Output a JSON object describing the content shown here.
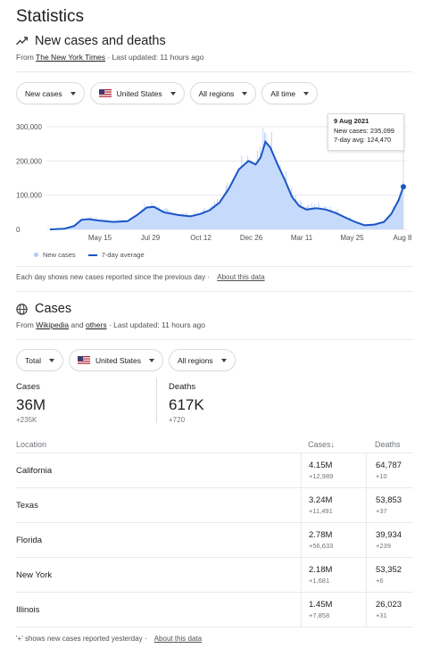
{
  "page": {
    "title": "Statistics"
  },
  "section1": {
    "heading": "New cases and deaths",
    "source_prefix": "From ",
    "source_name": "The New York Times",
    "updated": " · Last updated: 11 hours ago",
    "filters": [
      {
        "label": "New cases"
      },
      {
        "label": "United States",
        "flag": true
      },
      {
        "label": "All regions"
      },
      {
        "label": "All time"
      }
    ],
    "tooltip": {
      "date": "9 Aug 2021",
      "line1": "New cases: 235,099",
      "line2": "7-day avg: 124,470"
    },
    "legend": {
      "bars": "New cases",
      "line": "7-day average"
    },
    "footnote": "Each day shows new cases reported since the previous day",
    "footnote_link": "About this data"
  },
  "chart_data": {
    "type": "area",
    "title": "New cases and deaths",
    "y_ticks": [
      "300,000",
      "200,000",
      "100,000",
      "0"
    ],
    "y_tick_values": [
      300000,
      200000,
      100000,
      0
    ],
    "ylim": [
      0,
      300000
    ],
    "x_ticks": [
      "May 15",
      "Jul 29",
      "Oct 12",
      "Dec 26",
      "Mar 11",
      "May 25",
      "Aug 8"
    ],
    "colors": {
      "bars": "#aecbfa",
      "line": "#1a56c7"
    },
    "grid": true,
    "series": [
      {
        "name": "7-day average",
        "points": [
          [
            0,
            0
          ],
          [
            0.06,
            2000
          ],
          [
            0.1,
            10000
          ],
          [
            0.13,
            28000
          ],
          [
            0.16,
            30000
          ],
          [
            0.2,
            26000
          ],
          [
            0.26,
            22000
          ],
          [
            0.32,
            24000
          ],
          [
            0.36,
            42000
          ],
          [
            0.4,
            64000
          ],
          [
            0.43,
            66000
          ],
          [
            0.47,
            50000
          ],
          [
            0.53,
            42000
          ],
          [
            0.58,
            38000
          ],
          [
            0.62,
            45000
          ],
          [
            0.66,
            56000
          ],
          [
            0.7,
            78000
          ],
          [
            0.74,
            120000
          ],
          [
            0.78,
            175000
          ],
          [
            0.82,
            200000
          ],
          [
            0.85,
            190000
          ],
          [
            0.87,
            210000
          ],
          [
            0.89,
            256000
          ],
          [
            0.91,
            240000
          ],
          [
            0.94,
            190000
          ],
          [
            0.97,
            145000
          ],
          [
            1.0,
            95000
          ],
          [
            1.03,
            68000
          ],
          [
            1.06,
            58000
          ],
          [
            1.1,
            62000
          ],
          [
            1.14,
            58000
          ],
          [
            1.18,
            48000
          ],
          [
            1.22,
            35000
          ],
          [
            1.26,
            22000
          ],
          [
            1.3,
            12000
          ],
          [
            1.34,
            14000
          ],
          [
            1.38,
            22000
          ],
          [
            1.41,
            45000
          ],
          [
            1.44,
            85000
          ],
          [
            1.46,
            124470
          ]
        ]
      }
    ]
  },
  "section2": {
    "heading": "Cases",
    "source_prefix": "From ",
    "source_name1": "Wikipedia",
    "source_and": " and ",
    "source_name2": "others",
    "updated": " · Last updated: 11 hours ago",
    "filters": [
      {
        "label": "Total"
      },
      {
        "label": "United States",
        "flag": true
      },
      {
        "label": "All regions"
      }
    ],
    "stats": {
      "cases_label": "Cases",
      "cases_value": "36M",
      "cases_delta": "+235K",
      "deaths_label": "Deaths",
      "deaths_value": "617K",
      "deaths_delta": "+720"
    },
    "table": {
      "headers": {
        "location": "Location",
        "cases": "Cases↓",
        "deaths": "Deaths"
      },
      "rows": [
        {
          "location": "California",
          "cases": "4.15M",
          "cases_delta": "+12,989",
          "deaths": "64,787",
          "deaths_delta": "+10"
        },
        {
          "location": "Texas",
          "cases": "3.24M",
          "cases_delta": "+11,491",
          "deaths": "53,853",
          "deaths_delta": "+37"
        },
        {
          "location": "Florida",
          "cases": "2.78M",
          "cases_delta": "+56,633",
          "deaths": "39,934",
          "deaths_delta": "+239"
        },
        {
          "location": "New York",
          "cases": "2.18M",
          "cases_delta": "+1,681",
          "deaths": "53,352",
          "deaths_delta": "+6"
        },
        {
          "location": "Illinois",
          "cases": "1.45M",
          "cases_delta": "+7,858",
          "deaths": "26,023",
          "deaths_delta": "+31"
        }
      ]
    },
    "footnote": "'+' shows new cases reported yesterday",
    "footnote_link": "About this data"
  }
}
